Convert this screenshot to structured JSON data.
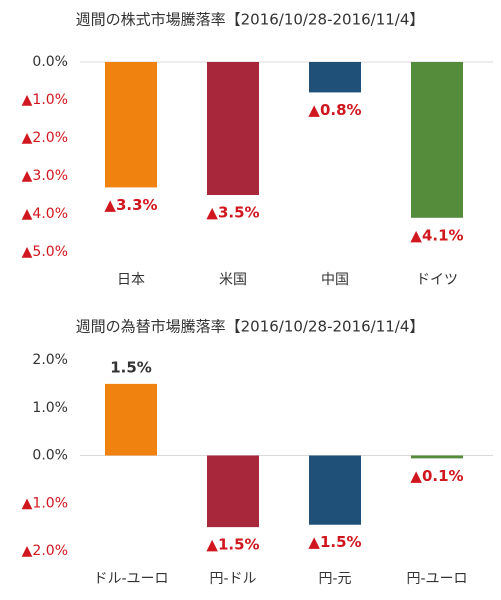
{
  "chart_data": [
    {
      "type": "bar",
      "title": "週間の株式市場騰落率【2016/10/28-2016/11/4】",
      "categories": [
        "日本",
        "米国",
        "中国",
        "ドイツ"
      ],
      "values": [
        -3.3,
        -3.5,
        -0.8,
        -4.1
      ],
      "value_labels": [
        "▲3.3%",
        "▲3.5%",
        "▲0.8%",
        "▲4.1%"
      ],
      "colors": [
        "#f0820f",
        "#a8273a",
        "#1f5078",
        "#548c3c"
      ],
      "ylim": [
        -5,
        0
      ],
      "yticks": [
        {
          "value": 0,
          "label": "0.0%"
        },
        {
          "value": -1,
          "label": "▲1.0%"
        },
        {
          "value": -2,
          "label": "▲2.0%"
        },
        {
          "value": -3,
          "label": "▲3.0%"
        },
        {
          "value": -4,
          "label": "▲4.0%"
        },
        {
          "value": -5,
          "label": "▲5.0%"
        }
      ]
    },
    {
      "type": "bar",
      "title": "週間の為替市場騰落率【2016/10/28-2016/11/4】",
      "categories": [
        "ドル-ユーロ",
        "円-ドル",
        "円-元",
        "円-ユーロ"
      ],
      "values": [
        1.5,
        -1.5,
        -1.45,
        -0.06
      ],
      "value_labels": [
        "1.5%",
        "▲1.5%",
        "▲1.5%",
        "▲0.1%"
      ],
      "colors": [
        "#f0820f",
        "#a8273a",
        "#1f5078",
        "#548c3c"
      ],
      "ylim": [
        -2,
        2
      ],
      "yticks": [
        {
          "value": 2,
          "label": "2.0%"
        },
        {
          "value": 1,
          "label": "1.0%"
        },
        {
          "value": 0,
          "label": "0.0%"
        },
        {
          "value": -1,
          "label": "▲1.0%"
        },
        {
          "value": -2,
          "label": "▲2.0%"
        }
      ]
    }
  ]
}
